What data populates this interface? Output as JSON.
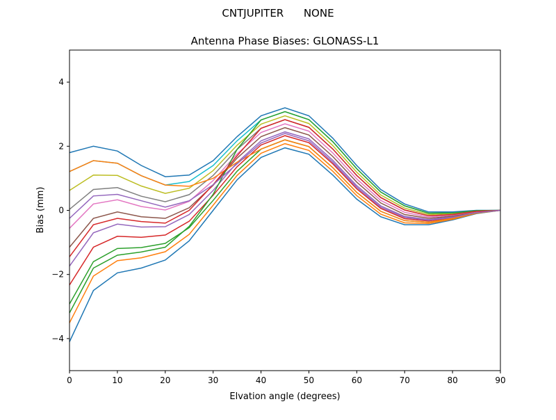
{
  "suptitle": "CNTJUPITER      NONE",
  "chart_data": {
    "type": "line",
    "title": "Antenna Phase Biases: GLONASS-L1",
    "xlabel": "Elvation angle (degrees)",
    "ylabel": "Bias (mm)",
    "xlim": [
      0,
      90
    ],
    "ylim": [
      -5,
      5
    ],
    "xticks": [
      0,
      10,
      20,
      30,
      40,
      50,
      60,
      70,
      80,
      90
    ],
    "yticks": [
      -4,
      -2,
      0,
      2,
      4
    ],
    "grid": false,
    "legend": "none",
    "colors": [
      "#1f77b4",
      "#ff7f0e",
      "#2ca02c",
      "#d62728",
      "#9467bd",
      "#8c564b",
      "#e377c2",
      "#7f7f7f",
      "#bcbd22",
      "#17becf"
    ],
    "x": [
      0,
      5,
      10,
      15,
      20,
      25,
      30,
      35,
      40,
      45,
      50,
      55,
      60,
      65,
      70,
      75,
      80,
      85,
      90
    ],
    "series": [
      {
        "values": [
          -4.1,
          -2.5,
          -1.95,
          -1.8,
          -1.55,
          -0.95,
          0.0,
          0.95,
          1.65,
          1.95,
          1.75,
          1.1,
          0.35,
          -0.2,
          -0.45,
          -0.45,
          -0.3,
          -0.1,
          0
        ]
      },
      {
        "values": [
          -3.51,
          -2.05,
          -1.57,
          -1.48,
          -1.29,
          -0.75,
          0.16,
          1.09,
          1.78,
          2.08,
          1.87,
          1.22,
          0.46,
          -0.12,
          -0.39,
          -0.41,
          -0.28,
          -0.09,
          0
        ]
      },
      {
        "values": [
          -2.92,
          -1.6,
          -1.19,
          -1.16,
          -1.03,
          -0.54,
          0.31,
          1.22,
          1.91,
          2.2,
          1.99,
          1.33,
          0.56,
          -0.03,
          -0.32,
          -0.37,
          -0.25,
          -0.08,
          0
        ]
      },
      {
        "values": [
          -2.33,
          -1.15,
          -0.81,
          -0.84,
          -0.77,
          -0.34,
          0.47,
          1.36,
          2.04,
          2.33,
          2.11,
          1.45,
          0.67,
          0.06,
          -0.26,
          -0.33,
          -0.23,
          -0.07,
          0
        ]
      },
      {
        "values": [
          -1.74,
          -0.7,
          -0.43,
          -0.52,
          -0.51,
          -0.13,
          0.62,
          1.49,
          2.17,
          2.45,
          2.23,
          1.56,
          0.77,
          0.14,
          -0.19,
          -0.29,
          -0.2,
          -0.06,
          0
        ]
      },
      {
        "values": [
          -1.15,
          -0.25,
          -0.05,
          -0.2,
          -0.25,
          0.08,
          0.78,
          1.63,
          2.3,
          2.58,
          2.35,
          1.68,
          0.88,
          0.23,
          -0.13,
          -0.25,
          -0.18,
          -0.05,
          0
        ]
      },
      {
        "values": [
          -0.56,
          0.2,
          0.33,
          0.12,
          0.01,
          0.28,
          0.93,
          1.76,
          2.43,
          2.7,
          2.47,
          1.79,
          0.98,
          0.31,
          -0.06,
          -0.21,
          -0.15,
          -0.04,
          0
        ]
      },
      {
        "values": [
          0.03,
          0.65,
          0.71,
          0.44,
          0.27,
          0.49,
          1.09,
          1.9,
          2.56,
          2.83,
          2.59,
          1.91,
          1.09,
          0.4,
          0.01,
          -0.17,
          -0.13,
          -0.03,
          0
        ]
      },
      {
        "values": [
          0.62,
          1.1,
          1.09,
          0.76,
          0.53,
          0.69,
          1.24,
          2.03,
          2.69,
          2.95,
          2.71,
          2.02,
          1.19,
          0.48,
          0.07,
          -0.13,
          -0.1,
          -0.02,
          0
        ]
      },
      {
        "values": [
          1.21,
          1.55,
          1.47,
          1.08,
          0.79,
          0.9,
          1.4,
          2.17,
          2.82,
          3.08,
          2.83,
          2.14,
          1.3,
          0.57,
          0.14,
          -0.09,
          -0.08,
          -0.01,
          0
        ]
      },
      {
        "values": [
          1.8,
          2.0,
          1.85,
          1.4,
          1.05,
          1.1,
          1.55,
          2.3,
          2.95,
          3.2,
          2.95,
          2.25,
          1.4,
          0.65,
          0.2,
          -0.05,
          -0.05,
          0,
          0
        ]
      },
      {
        "values": [
          1.21,
          1.55,
          1.47,
          1.08,
          0.79,
          0.75,
          1.0,
          1.5,
          1.91,
          2.2,
          1.99,
          1.33,
          0.56,
          -0.03,
          -0.32,
          -0.37,
          -0.25,
          -0.08,
          0
        ]
      },
      {
        "values": [
          -3.2,
          -1.8,
          -1.4,
          -1.3,
          -1.15,
          -0.5,
          0.5,
          1.9,
          2.82,
          3.08,
          2.83,
          2.14,
          1.3,
          0.57,
          0.14,
          -0.09,
          -0.08,
          -0.01,
          0
        ]
      },
      {
        "values": [
          -1.45,
          -0.45,
          -0.25,
          -0.35,
          -0.4,
          0.0,
          0.8,
          1.7,
          2.56,
          2.83,
          2.59,
          1.91,
          1.09,
          0.4,
          0.01,
          -0.17,
          -0.13,
          -0.03,
          0
        ]
      },
      {
        "values": [
          -0.25,
          0.45,
          0.5,
          0.3,
          0.1,
          0.3,
          0.8,
          1.45,
          2.1,
          2.4,
          2.17,
          1.5,
          0.72,
          0.1,
          -0.22,
          -0.31,
          -0.22,
          -0.07,
          0
        ]
      }
    ]
  }
}
